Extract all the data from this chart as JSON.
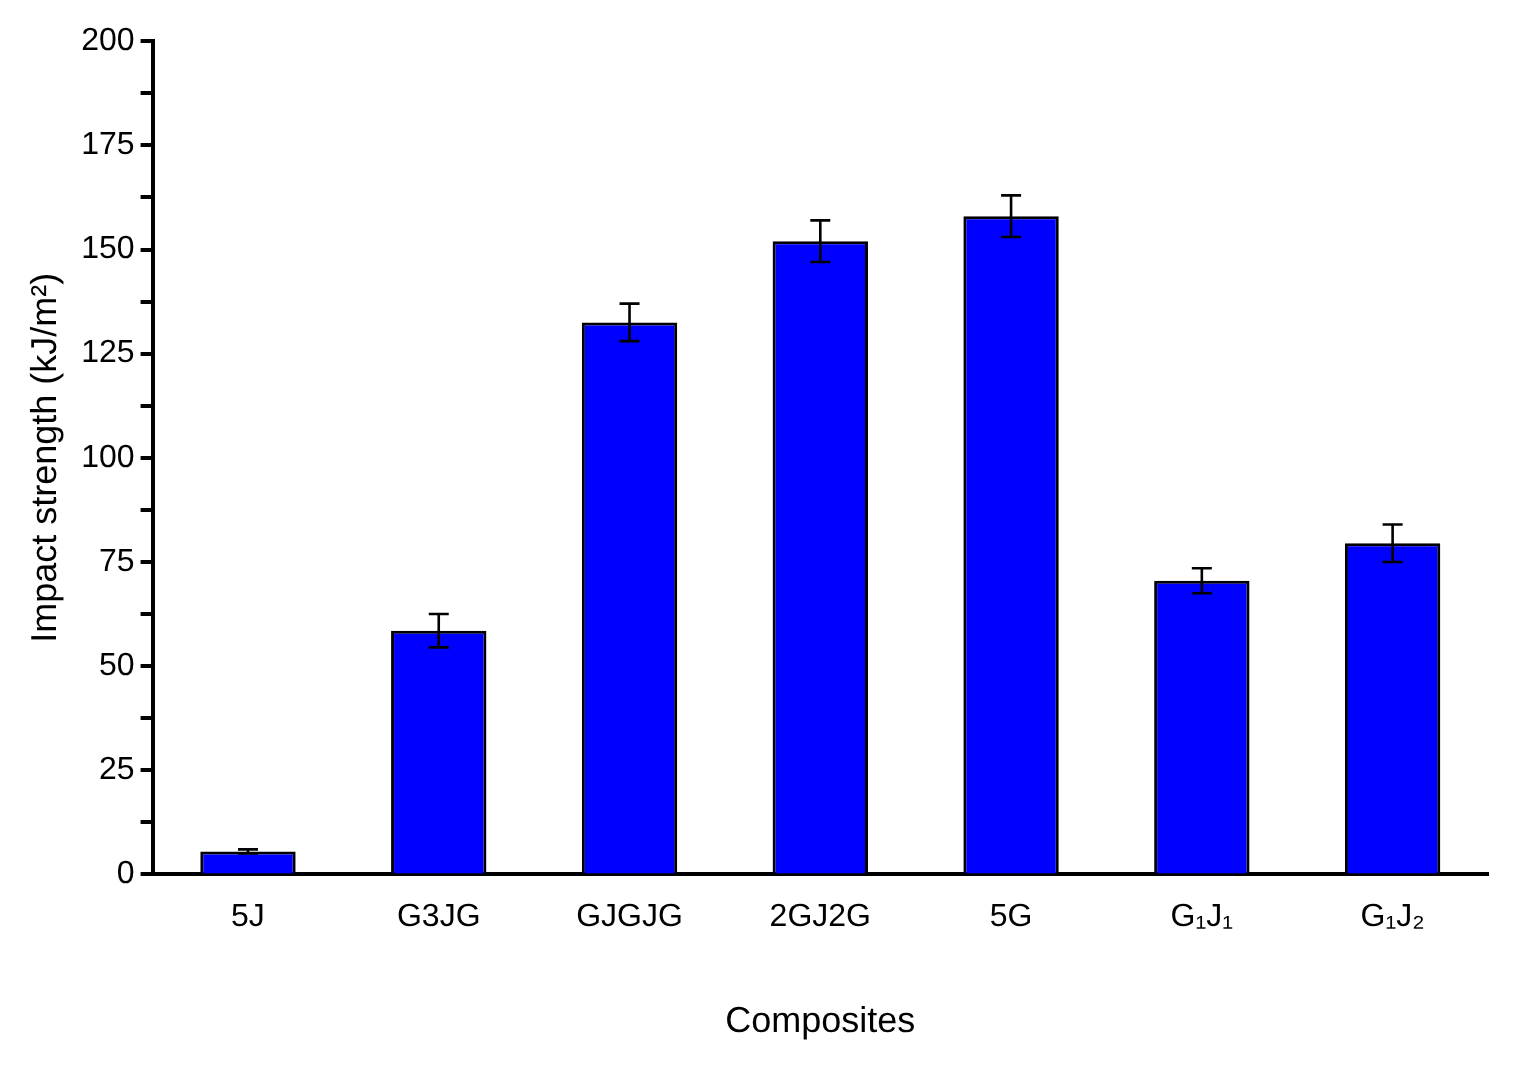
{
  "chart_data": {
    "type": "bar",
    "xlabel": "Composites",
    "ylabel": "Impact strength (kJ/m²)",
    "categories": [
      "5J",
      "G3JG",
      "GJGJG",
      "2GJ2G",
      "5G",
      "G₁J₁",
      "G₁J₂"
    ],
    "values": [
      5.5,
      58.5,
      132.5,
      152,
      158,
      70.5,
      79.5
    ],
    "errors": [
      0.5,
      4,
      4.5,
      5,
      5,
      3,
      4.5
    ],
    "color": "#0000ff",
    "ylim": [
      0,
      200
    ],
    "yticks": [
      0,
      {
        "value": 12.5,
        "label": null
      },
      25,
      {
        "value": 37.5,
        "label": null
      },
      50,
      {
        "value": 62.5,
        "label": null
      },
      75,
      {
        "value": 87.5,
        "label": null
      },
      100,
      {
        "value": 112.5,
        "label": null
      },
      125,
      {
        "value": 137.5,
        "label": null
      },
      150,
      {
        "value": 162.5,
        "label": null
      },
      175,
      {
        "value": 187.5,
        "label": null
      },
      200
    ],
    "grid": false,
    "legend": false
  }
}
